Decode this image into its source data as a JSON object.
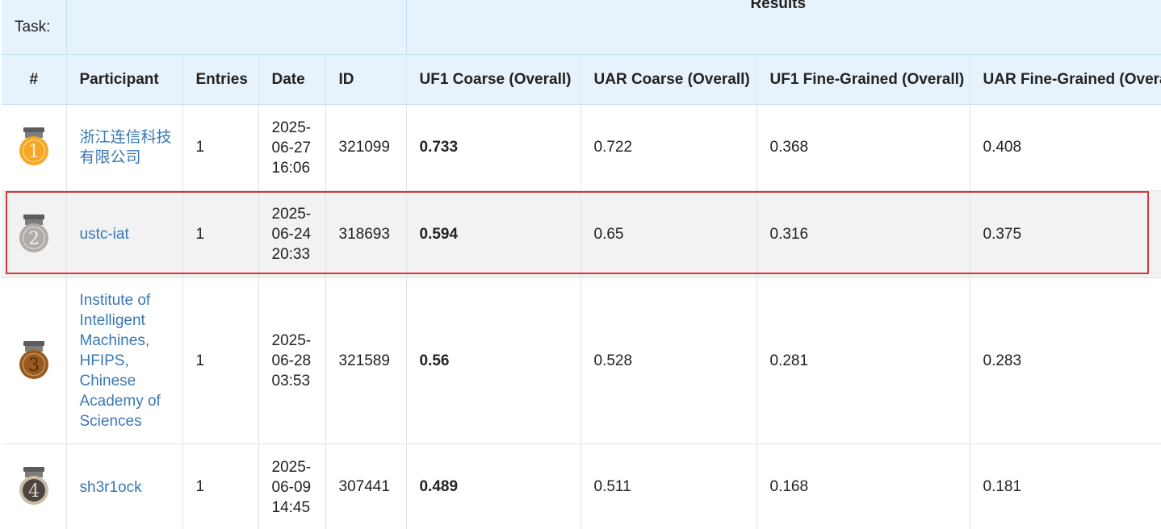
{
  "header": {
    "task_label": "Task:",
    "results_label": "Results"
  },
  "columns": [
    "#",
    "Participant",
    "Entries",
    "Date",
    "ID",
    "UF1 Coarse (Overall)",
    "UAR Coarse (Overall)",
    "UF1 Fine-Grained (Overall)",
    "UAR Fine-Grained (Overal"
  ],
  "rows": [
    {
      "rank": "1",
      "medal_color": "#f5a623",
      "participant": "浙江连信科技有限公司",
      "entries": "1",
      "date": "2025-06-27 16:06",
      "id": "321099",
      "uf1_coarse": "0.733",
      "uar_coarse": "0.722",
      "uf1_fine": "0.368",
      "uar_fine": "0.408"
    },
    {
      "rank": "2",
      "medal_color": "#b0aca5",
      "participant": "ustc-iat",
      "entries": "1",
      "date": "2025-06-24 20:33",
      "id": "318693",
      "uf1_coarse": "0.594",
      "uar_coarse": "0.65",
      "uf1_fine": "0.316",
      "uar_fine": "0.375"
    },
    {
      "rank": "3",
      "medal_color": "#9a5a1c",
      "participant": "Institute of Intelligent Machines, HFIPS, Chinese Academy of Sciences",
      "entries": "1",
      "date": "2025-06-28 03:53",
      "id": "321589",
      "uf1_coarse": "0.56",
      "uar_coarse": "0.528",
      "uf1_fine": "0.281",
      "uar_fine": "0.283"
    },
    {
      "rank": "4",
      "medal_color": "#4a4540",
      "participant": "sh3r1ock",
      "entries": "1",
      "date": "2025-06-09 14:45",
      "id": "307441",
      "uf1_coarse": "0.489",
      "uar_coarse": "0.511",
      "uf1_fine": "0.168",
      "uar_fine": "0.181"
    }
  ],
  "highlight_color": "#d0393f",
  "link_color": "#3a78b3"
}
